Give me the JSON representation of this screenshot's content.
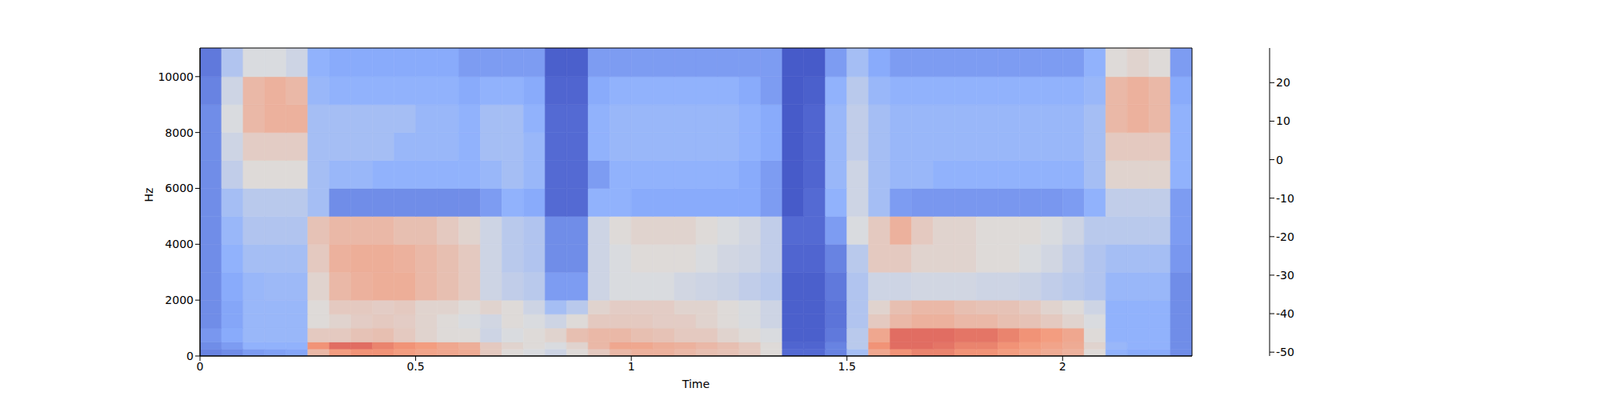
{
  "chart_data": {
    "type": "heatmap",
    "x_label": "Time",
    "y_label": "Hz",
    "xlim": [
      0,
      2.3
    ],
    "ylim": [
      0,
      11025
    ],
    "xticks": [
      0,
      0.5,
      1,
      1.5,
      2
    ],
    "yticks": [
      0,
      2000,
      4000,
      6000,
      8000,
      10000
    ],
    "x_bins": [
      0,
      0.05,
      0.1,
      0.15,
      0.2,
      0.25,
      0.3,
      0.35,
      0.4,
      0.45,
      0.5,
      0.55,
      0.6,
      0.65,
      0.7,
      0.75,
      0.8,
      0.85,
      0.9,
      0.95,
      1,
      1.05,
      1.1,
      1.15,
      1.2,
      1.25,
      1.3,
      1.35,
      1.4,
      1.45,
      1.5,
      1.55,
      1.6,
      1.65,
      1.7,
      1.75,
      1.8,
      1.85,
      1.9,
      1.95,
      2,
      2.05,
      2.1,
      2.15,
      2.2,
      2.25,
      2.3
    ],
    "y_bins": [
      0,
      250,
      500,
      1000,
      1500,
      2000,
      3000,
      4000,
      5000,
      6000,
      7000,
      8000,
      9000,
      10000,
      11025
    ],
    "cells": [
      [
        -40,
        -38,
        -35,
        -34,
        -33,
        0,
        8,
        10,
        10,
        8,
        6,
        5,
        4,
        -5,
        -10,
        -12,
        -15,
        -10,
        -5,
        0,
        2,
        2,
        0,
        -2,
        -3,
        -5,
        -10,
        -45,
        -45,
        -40,
        -25,
        5,
        10,
        12,
        12,
        10,
        10,
        8,
        6,
        4,
        2,
        -10,
        -30,
        -32,
        -32,
        -38
      ],
      [
        -38,
        -35,
        -30,
        -30,
        -30,
        10,
        15,
        15,
        12,
        10,
        8,
        5,
        3,
        -5,
        -8,
        -10,
        -12,
        -8,
        0,
        5,
        5,
        3,
        2,
        0,
        -2,
        -5,
        -10,
        -46,
        -46,
        -40,
        -20,
        10,
        15,
        15,
        14,
        12,
        12,
        10,
        8,
        6,
        4,
        -8,
        -28,
        -30,
        -30,
        -38
      ],
      [
        -36,
        -32,
        -28,
        -28,
        -28,
        -5,
        -5,
        -3,
        -2,
        -5,
        -8,
        -10,
        -10,
        -15,
        -12,
        -10,
        -8,
        -2,
        0,
        0,
        -2,
        -3,
        -5,
        -5,
        -8,
        -10,
        -12,
        -47,
        -47,
        -42,
        -20,
        5,
        15,
        15,
        15,
        14,
        14,
        12,
        10,
        8,
        5,
        -10,
        -30,
        -30,
        -30,
        -38
      ],
      [
        -38,
        -33,
        -28,
        -28,
        -28,
        -10,
        -8,
        -6,
        -5,
        -6,
        -8,
        -10,
        -12,
        -14,
        -10,
        -12,
        -15,
        -10,
        -5,
        -5,
        -5,
        -6,
        -6,
        -8,
        -10,
        -12,
        -15,
        -47,
        -47,
        -43,
        -22,
        -5,
        0,
        2,
        2,
        0,
        0,
        -2,
        -3,
        -5,
        -8,
        -12,
        -30,
        -30,
        -30,
        -38
      ],
      [
        -38,
        -33,
        -28,
        -28,
        -28,
        -10,
        -5,
        -5,
        -6,
        -5,
        -8,
        -8,
        -10,
        -8,
        -10,
        -15,
        -25,
        -20,
        -8,
        -6,
        -6,
        -6,
        -8,
        -8,
        -10,
        -12,
        -15,
        -47,
        -47,
        -43,
        -22,
        -8,
        -2,
        0,
        0,
        -2,
        -3,
        -3,
        -5,
        -8,
        -10,
        -15,
        -30,
        -30,
        -30,
        -38
      ],
      [
        -38,
        -32,
        -28,
        -27,
        -27,
        -8,
        0,
        2,
        3,
        3,
        0,
        -2,
        -5,
        -15,
        -18,
        -20,
        -35,
        -35,
        -15,
        -12,
        -12,
        -12,
        -14,
        -15,
        -16,
        -18,
        -20,
        -47,
        -47,
        -42,
        -22,
        -15,
        -15,
        -14,
        -14,
        -14,
        -15,
        -15,
        -16,
        -18,
        -20,
        -22,
        -28,
        -28,
        -28,
        -38
      ],
      [
        -38,
        -30,
        -25,
        -25,
        -25,
        -5,
        2,
        3,
        3,
        2,
        0,
        -2,
        -5,
        -15,
        -20,
        -22,
        -38,
        -38,
        -15,
        -12,
        -10,
        -10,
        -10,
        -12,
        -14,
        -15,
        -18,
        -46,
        -46,
        -40,
        -20,
        -5,
        -5,
        -8,
        -8,
        -8,
        -10,
        -10,
        -12,
        -14,
        -18,
        -22,
        -25,
        -25,
        -25,
        -36
      ],
      [
        -38,
        -28,
        -22,
        -22,
        -22,
        -3,
        0,
        0,
        0,
        -2,
        -2,
        -5,
        -8,
        -15,
        -20,
        -22,
        -38,
        -38,
        -15,
        -10,
        -8,
        -8,
        -8,
        -10,
        -12,
        -14,
        -18,
        -45,
        -45,
        -35,
        -12,
        -5,
        2,
        -5,
        -8,
        -8,
        -10,
        -10,
        -10,
        -12,
        -15,
        -20,
        -20,
        -20,
        -20,
        -35
      ],
      [
        -38,
        -25,
        -20,
        -20,
        -20,
        -25,
        -38,
        -38,
        -38,
        -38,
        -38,
        -38,
        -38,
        -35,
        -30,
        -32,
        -45,
        -45,
        -30,
        -30,
        -32,
        -32,
        -32,
        -32,
        -32,
        -32,
        -35,
        -48,
        -45,
        -30,
        -15,
        -25,
        -35,
        -36,
        -36,
        -36,
        -36,
        -36,
        -36,
        -36,
        -35,
        -30,
        -18,
        -18,
        -18,
        -35
      ],
      [
        -38,
        -18,
        -10,
        -10,
        -10,
        -25,
        -28,
        -28,
        -30,
        -30,
        -30,
        -30,
        -30,
        -28,
        -25,
        -28,
        -45,
        -45,
        -35,
        -30,
        -30,
        -30,
        -30,
        -30,
        -30,
        -32,
        -35,
        -48,
        -46,
        -28,
        -15,
        -25,
        -28,
        -28,
        -30,
        -30,
        -30,
        -30,
        -30,
        -30,
        -30,
        -25,
        -8,
        -8,
        -8,
        -30
      ],
      [
        -38,
        -15,
        -6,
        -6,
        -6,
        -25,
        -25,
        -25,
        -25,
        -28,
        -28,
        -28,
        -30,
        -25,
        -25,
        -28,
        -45,
        -45,
        -30,
        -28,
        -28,
        -28,
        -28,
        -28,
        -28,
        -30,
        -32,
        -48,
        -46,
        -28,
        -18,
        -25,
        -28,
        -28,
        -28,
        -28,
        -28,
        -28,
        -28,
        -28,
        -28,
        -25,
        -5,
        -5,
        -5,
        -30
      ],
      [
        -38,
        -12,
        0,
        2,
        2,
        -25,
        -25,
        -25,
        -25,
        -25,
        -28,
        -28,
        -30,
        -25,
        -25,
        -30,
        -45,
        -45,
        -30,
        -28,
        -28,
        -28,
        -28,
        -28,
        -28,
        -30,
        -32,
        -48,
        -46,
        -28,
        -18,
        -25,
        -28,
        -28,
        -28,
        -28,
        -28,
        -28,
        -28,
        -28,
        -28,
        -25,
        0,
        2,
        0,
        -30
      ],
      [
        -40,
        -15,
        0,
        2,
        0,
        -28,
        -30,
        -30,
        -30,
        -30,
        -30,
        -30,
        -32,
        -30,
        -30,
        -32,
        -46,
        -46,
        -32,
        -30,
        -30,
        -30,
        -30,
        -30,
        -30,
        -32,
        -35,
        -48,
        -47,
        -30,
        -20,
        -28,
        -30,
        -30,
        -30,
        -30,
        -30,
        -30,
        -30,
        -30,
        -30,
        -28,
        0,
        2,
        0,
        -32
      ],
      [
        -42,
        -22,
        -12,
        -12,
        -15,
        -30,
        -32,
        -32,
        -32,
        -32,
        -32,
        -32,
        -35,
        -35,
        -35,
        -35,
        -47,
        -47,
        -35,
        -35,
        -35,
        -35,
        -35,
        -35,
        -35,
        -35,
        -35,
        -48,
        -48,
        -35,
        -25,
        -32,
        -35,
        -35,
        -35,
        -35,
        -35,
        -35,
        -35,
        -35,
        -35,
        -30,
        -10,
        -8,
        -10,
        -35
      ]
    ],
    "colorbar": {
      "range": [
        -51,
        29
      ],
      "ticks": [
        -50,
        -40,
        -30,
        -20,
        -10,
        0,
        10,
        20
      ]
    }
  }
}
